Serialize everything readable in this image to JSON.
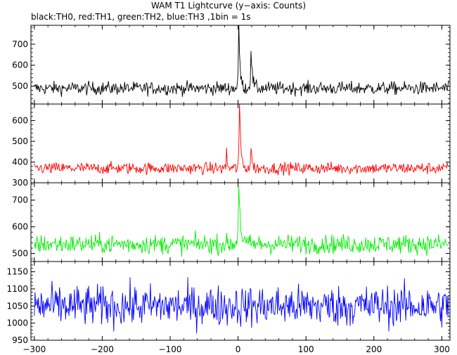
{
  "title": "WAM T1 Lightcurve (y−axis: Counts)",
  "subtitle": "black:TH0, red:TH1, green:TH2, blue:TH3 ,1bin = 1s",
  "chart_data": {
    "type": "line",
    "xlim": [
      -305,
      312
    ],
    "x_ticks": [
      -300,
      -200,
      -100,
      0,
      100,
      200,
      300
    ],
    "x_tick_labels": [
      "−300",
      "−200",
      "−100",
      "0",
      "100",
      "200",
      "300"
    ],
    "grid": false,
    "panels": [
      {
        "series": "TH0",
        "color": "#000000",
        "ylim": [
          415,
          790
        ],
        "y_ticks": [
          500,
          600,
          700
        ],
        "baseline": 490,
        "noise": 22,
        "peaks": [
          {
            "x": 1,
            "value": 775,
            "width": 2
          },
          {
            "x": 19,
            "value": 680,
            "width": 2
          }
        ]
      },
      {
        "series": "TH1",
        "color": "#ff0000",
        "ylim": [
          300,
          680
        ],
        "y_ticks": [
          300,
          400,
          500,
          600
        ],
        "baseline": 370,
        "noise": 20,
        "peaks": [
          {
            "x": 2,
            "value": 680,
            "width": 2
          },
          {
            "x": 19,
            "value": 480,
            "width": 1.5
          },
          {
            "x": -17,
            "value": 460,
            "width": 1
          }
        ]
      },
      {
        "series": "TH2",
        "color": "#00ee00",
        "ylim": [
          470,
          765
        ],
        "y_ticks": [
          500,
          600,
          700
        ],
        "baseline": 535,
        "noise": 25,
        "peaks": [
          {
            "x": 1,
            "value": 765,
            "width": 2.5
          }
        ]
      },
      {
        "series": "TH3",
        "color": "#0000ff",
        "ylim": [
          950,
          1180
        ],
        "y_ticks": [
          950,
          1000,
          1050,
          1100,
          1150
        ],
        "baseline": 1050,
        "noise": 42,
        "peaks": []
      }
    ]
  }
}
